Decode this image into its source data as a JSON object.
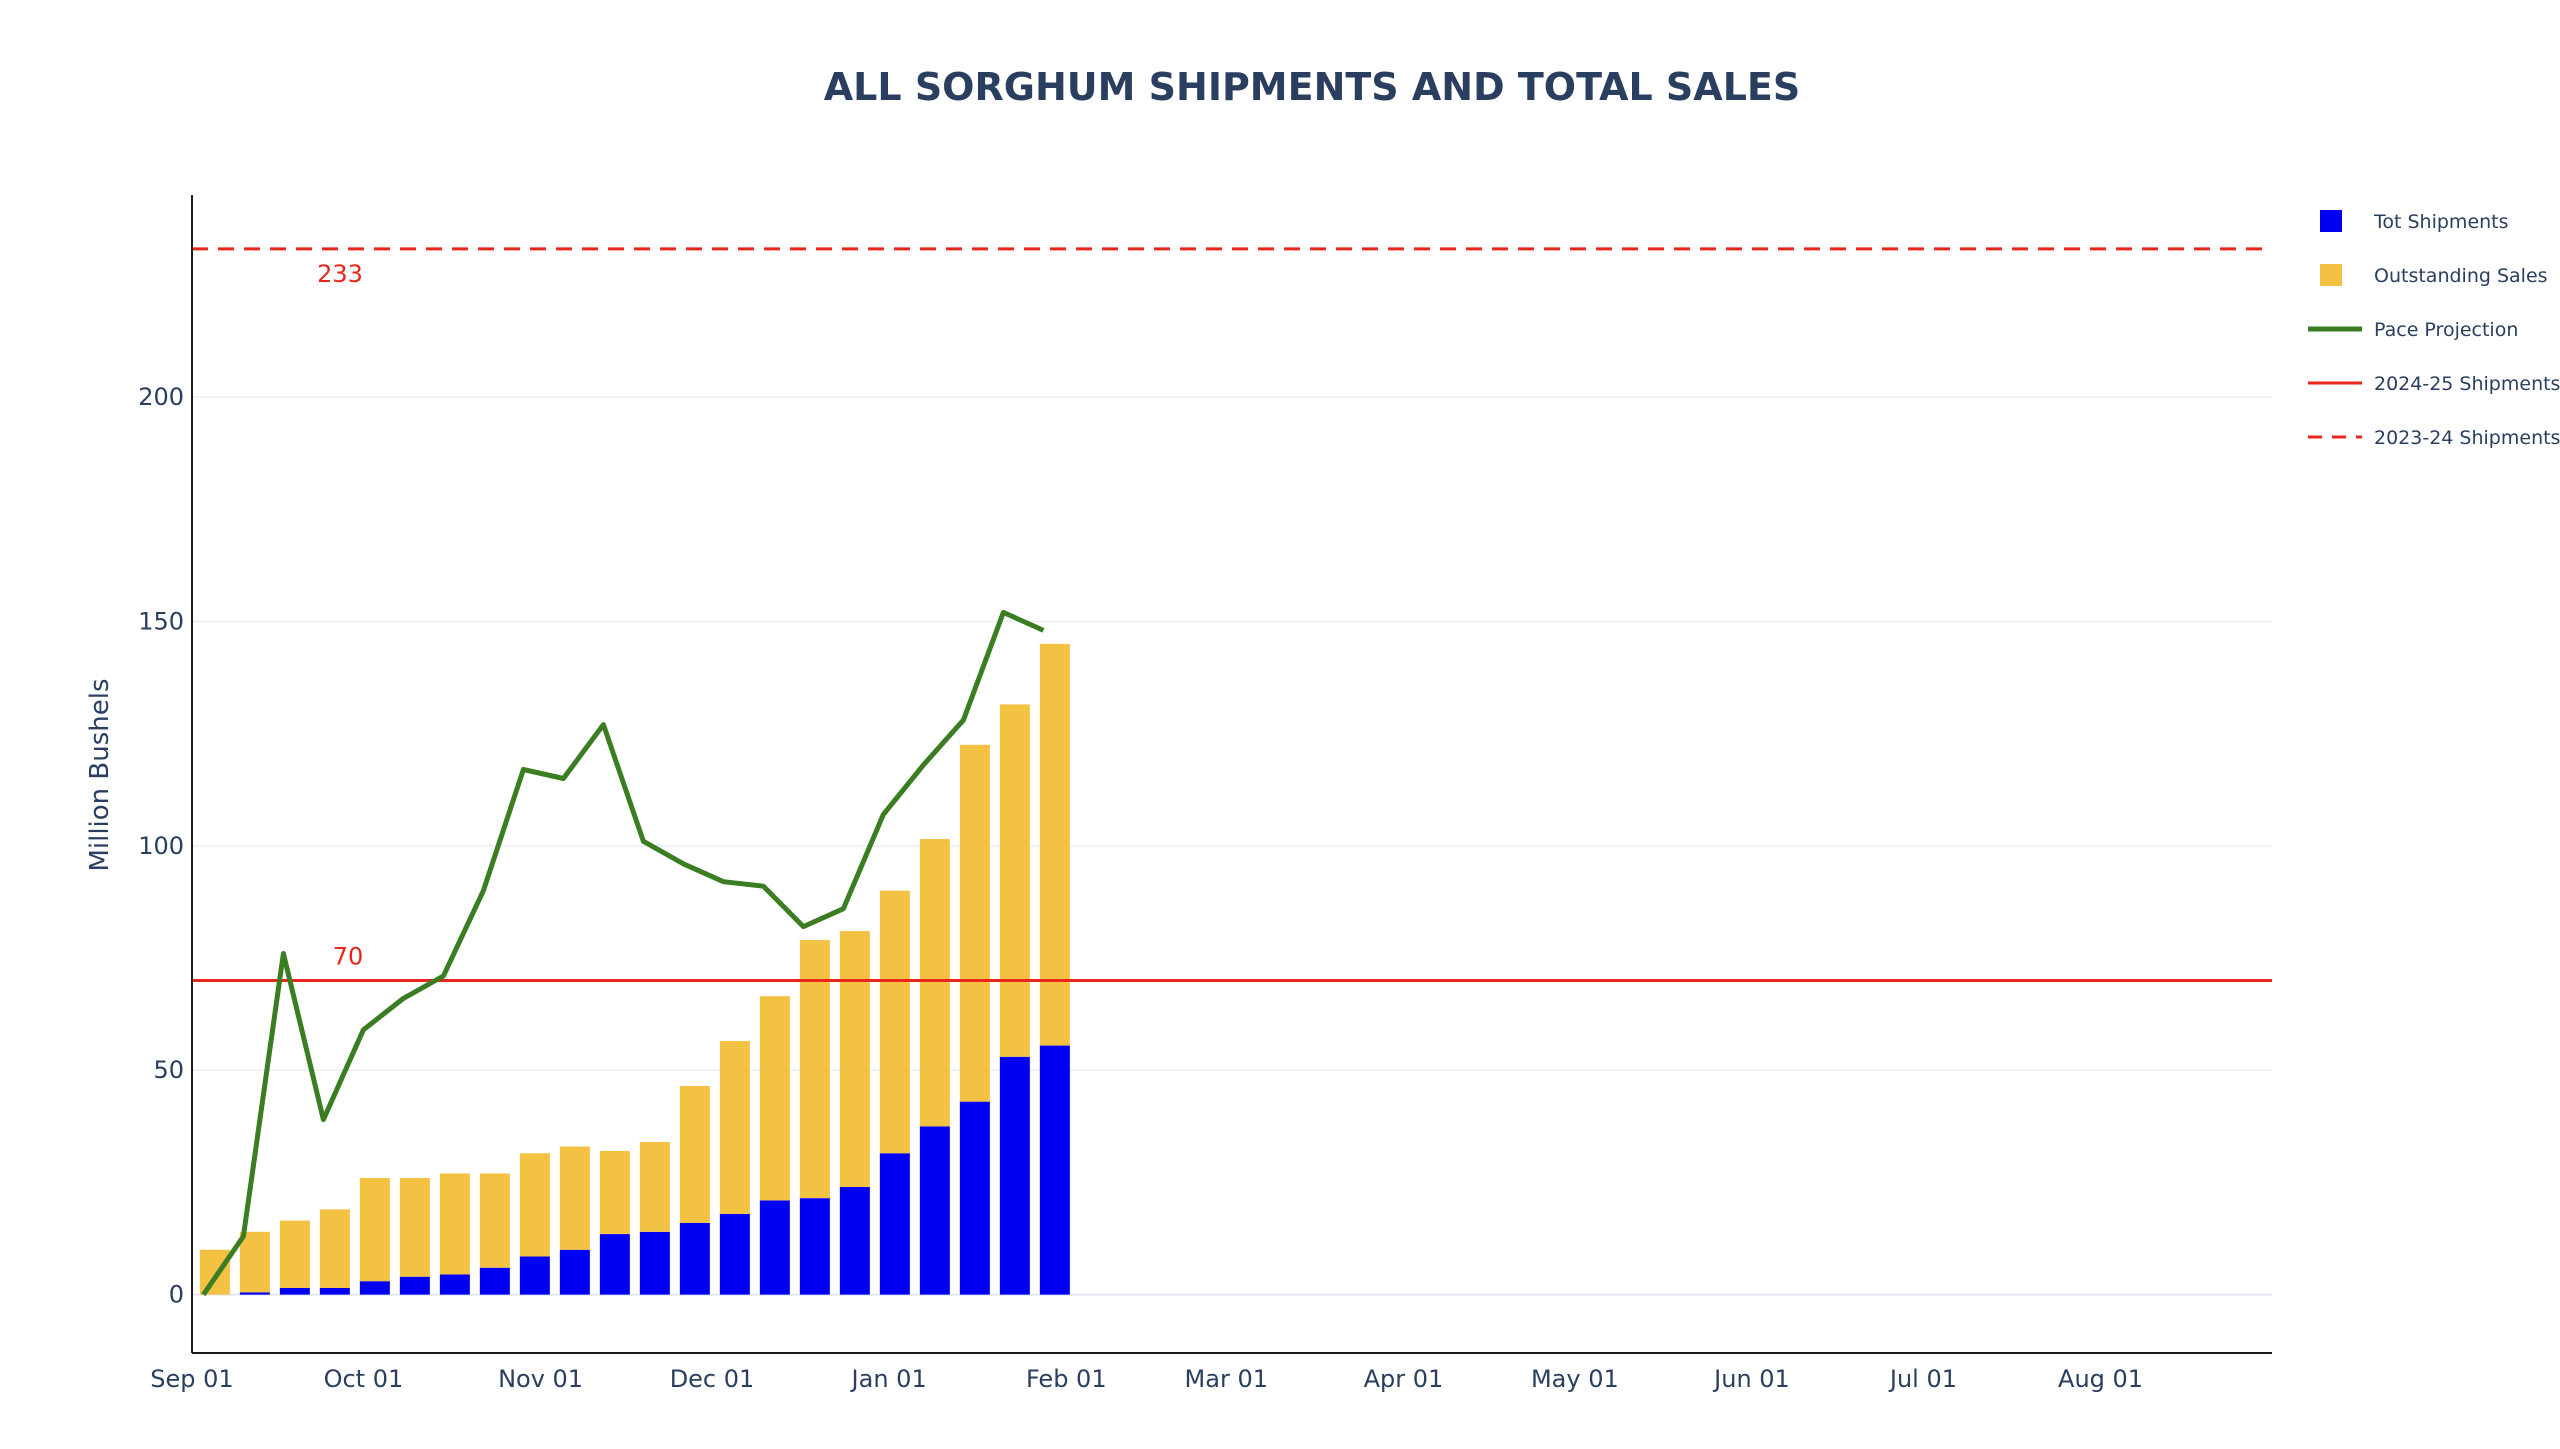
{
  "chart_data": {
    "type": "bar",
    "title": "ALL SORGHUM SHIPMENTS AND TOTAL SALES",
    "ylabel": "Million Bushels",
    "xlabel": "",
    "ylim": [
      -13,
      245
    ],
    "y_ticks": [
      0,
      50,
      100,
      150,
      200
    ],
    "x_domain": [
      "2024-09-01",
      "2025-08-31"
    ],
    "x_ticks": [
      {
        "date": "2024-09-01",
        "label": "Sep 01"
      },
      {
        "date": "2024-10-01",
        "label": "Oct 01"
      },
      {
        "date": "2024-11-01",
        "label": "Nov 01"
      },
      {
        "date": "2024-12-01",
        "label": "Dec 01"
      },
      {
        "date": "2025-01-01",
        "label": "Jan 01"
      },
      {
        "date": "2025-02-01",
        "label": "Feb 01"
      },
      {
        "date": "2025-03-01",
        "label": "Mar 01"
      },
      {
        "date": "2025-04-01",
        "label": "Apr 01"
      },
      {
        "date": "2025-05-01",
        "label": "May 01"
      },
      {
        "date": "2025-06-01",
        "label": "Jun 01"
      },
      {
        "date": "2025-07-01",
        "label": "Jul 01"
      },
      {
        "date": "2025-08-01",
        "label": "Aug 01"
      }
    ],
    "grid": true,
    "legend_position": "right",
    "bar_mode": "stack",
    "x": [
      "2024-09-05",
      "2024-09-12",
      "2024-09-19",
      "2024-09-26",
      "2024-10-03",
      "2024-10-10",
      "2024-10-17",
      "2024-10-24",
      "2024-10-31",
      "2024-11-07",
      "2024-11-14",
      "2024-11-21",
      "2024-11-28",
      "2024-12-05",
      "2024-12-12",
      "2024-12-19",
      "2024-12-26",
      "2025-01-02",
      "2025-01-09",
      "2025-01-16",
      "2025-01-23",
      "2025-01-30"
    ],
    "series": [
      {
        "name": "Tot Shipments",
        "kind": "bar",
        "color": "#0000f5",
        "values": [
          0,
          0.5,
          1.5,
          1.5,
          3,
          4,
          4.5,
          6,
          8.5,
          10,
          13.5,
          14,
          16,
          18,
          21,
          21.5,
          24,
          31.5,
          37.5,
          43,
          53,
          55.5
        ]
      },
      {
        "name": "Outstanding Sales",
        "kind": "bar",
        "color": "#f4c242",
        "values": [
          10,
          13.5,
          15,
          17.5,
          23,
          22,
          22.5,
          21,
          23,
          23,
          18.5,
          20,
          30.5,
          38.5,
          45.5,
          57.5,
          57,
          58.5,
          64,
          79.5,
          78.5,
          89.5
        ]
      },
      {
        "name": "Pace Projection",
        "kind": "line",
        "color": "#3a7d22",
        "x": [
          "2024-09-03",
          "2024-09-10",
          "2024-09-17",
          "2024-09-24",
          "2024-10-01",
          "2024-10-08",
          "2024-10-15",
          "2024-10-22",
          "2024-10-29",
          "2024-11-05",
          "2024-11-12",
          "2024-11-19",
          "2024-11-26",
          "2024-12-03",
          "2024-12-10",
          "2024-12-17",
          "2024-12-24",
          "2024-12-31",
          "2025-01-07",
          "2025-01-14",
          "2025-01-21",
          "2025-01-28"
        ],
        "values": [
          0,
          13,
          76,
          39,
          59,
          66,
          71,
          90,
          117,
          115,
          127,
          101,
          96,
          92,
          91,
          82,
          86,
          107,
          118,
          128,
          152,
          148
        ]
      },
      {
        "name": "2024-25 Shipments",
        "kind": "hline",
        "color": "#e8261b",
        "value": 70,
        "label": "70"
      },
      {
        "name": "2023-24 Shipments",
        "kind": "hline-dashed",
        "color": "#e8261b",
        "value": 233,
        "label": "233"
      }
    ]
  }
}
